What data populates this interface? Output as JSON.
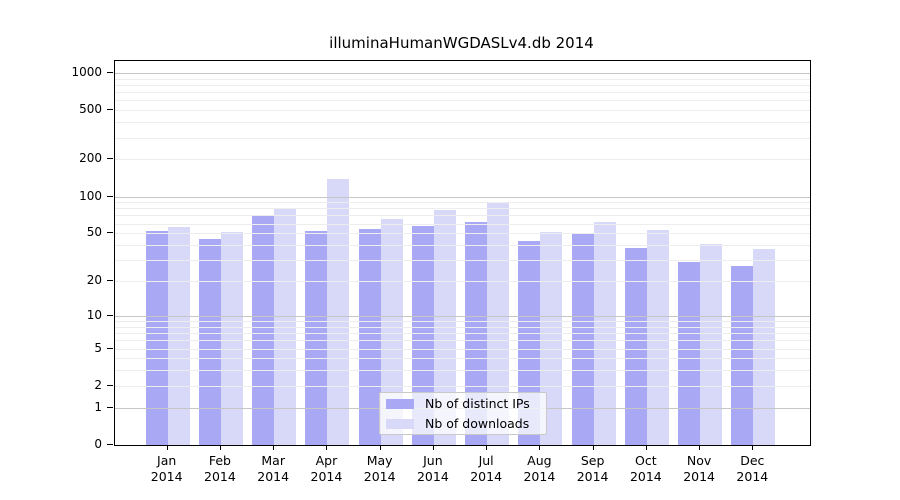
{
  "chart_data": {
    "type": "bar",
    "title": "illuminaHumanWGDASLv4.db 2014",
    "xlabel": "",
    "ylabel": "",
    "y_scale": "log1p",
    "ylim": [
      0,
      1000
    ],
    "yticks": [
      0,
      1,
      2,
      5,
      10,
      20,
      50,
      100,
      200,
      500,
      1000
    ],
    "grid": "horizontal, minor lines at 2-9 per decade, major lines at powers of 10, drawn over bars",
    "categories": [
      "Jan",
      "Feb",
      "Mar",
      "Apr",
      "May",
      "Jun",
      "Jul",
      "Aug",
      "Sep",
      "Oct",
      "Nov",
      "Dec"
    ],
    "x_tick_year": "2014",
    "series": [
      {
        "name": "Nb of distinct IPs",
        "color": "#a8a8f4",
        "values": [
          52,
          45,
          70,
          52,
          54,
          57,
          62,
          43,
          50,
          38,
          29,
          27
        ]
      },
      {
        "name": "Nb of downloads",
        "color": "#d8d8f8",
        "values": [
          56,
          51,
          79,
          140,
          65,
          77,
          88,
          51,
          62,
          53,
          41,
          37
        ]
      }
    ],
    "legend_position": "inside plot, lower middle"
  },
  "colors": {
    "background": "#ffffff",
    "frame": "#000000",
    "grid_minor": "#ededed",
    "grid_major": "#c6c6c6",
    "text": "#000000"
  }
}
